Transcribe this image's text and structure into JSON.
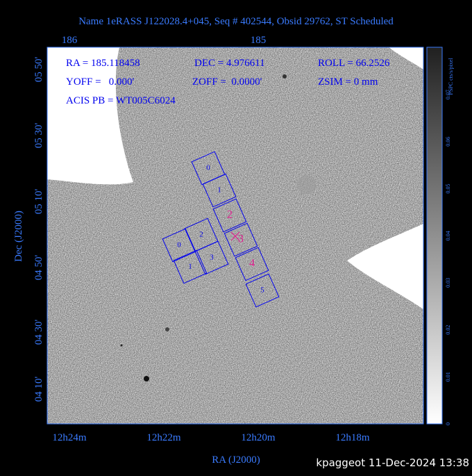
{
  "title": "Name 1eRASS J122028.4+045, Seq # 402544, Obsid 29762, ST Scheduled",
  "top_axis": [
    "186",
    "185"
  ],
  "left_axis": [
    "05 50'",
    "05 30'",
    "05 10'",
    "04 50'",
    "04 30'",
    "04 10'"
  ],
  "bottom_axis": [
    "12h24m",
    "12h22m",
    "12h20m",
    "12h18m"
  ],
  "x_title": "RA (J2000)",
  "y_title": "Dec (J2000)",
  "info": {
    "ra": "RA = 185.118458",
    "dec": "DEC = 4.976611",
    "roll": "ROLL = 66.2526",
    "yoff": "YOFF =   0.000'",
    "zoff": "ZOFF =  0.0000'",
    "zsim": "ZSIM = 0 mm",
    "acis": "ACIS PB = WT005C6024"
  },
  "colorbar": {
    "label": "PSPC cts/s/pixel",
    "ticks": [
      "0",
      "0.01",
      "0.02",
      "0.03",
      "0.04",
      "0.05",
      "0.06",
      "0.07"
    ]
  },
  "chips": {
    "i_array": [
      "0",
      "2",
      "1",
      "3"
    ],
    "s_array": [
      "0",
      "1",
      "2",
      "3",
      "4",
      "5"
    ]
  },
  "footer": "kpaggeot 11-Dec-2024 13:38"
}
